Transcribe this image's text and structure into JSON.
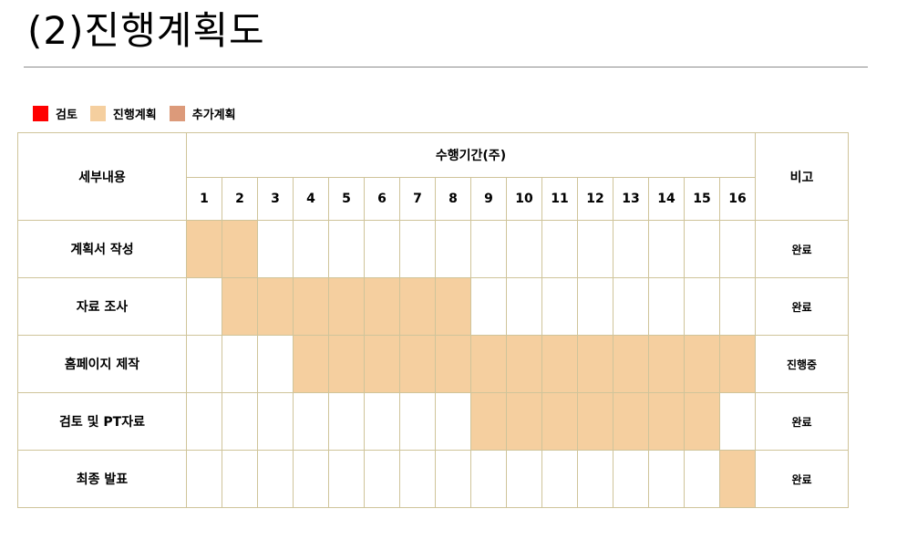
{
  "title": "(2)진행계획도",
  "legend": [
    {
      "label": "검토",
      "color": "#ff0000"
    },
    {
      "label": "진행계획",
      "color": "#f5cf9f"
    },
    {
      "label": "추가계획",
      "color": "#dc9a7a"
    }
  ],
  "table": {
    "task_header": "세부내용",
    "period_header": "수행기간(주)",
    "note_header": "비고",
    "weeks": [
      "1",
      "2",
      "3",
      "4",
      "5",
      "6",
      "7",
      "8",
      "9",
      "10",
      "11",
      "12",
      "13",
      "14",
      "15",
      "16"
    ],
    "rows": [
      {
        "name": "계획서 작성",
        "start": 1,
        "end": 2,
        "note": "완료"
      },
      {
        "name": "자료 조사",
        "start": 2,
        "end": 8,
        "note": "완료"
      },
      {
        "name": "홈페이지 제작",
        "start": 4,
        "end": 16,
        "note": "진행중"
      },
      {
        "name": "검토 및 PT자료",
        "start": 9,
        "end": 15,
        "note": "완료"
      },
      {
        "name": "최종 발표",
        "start": 16,
        "end": 16,
        "note": "완료"
      }
    ]
  }
}
